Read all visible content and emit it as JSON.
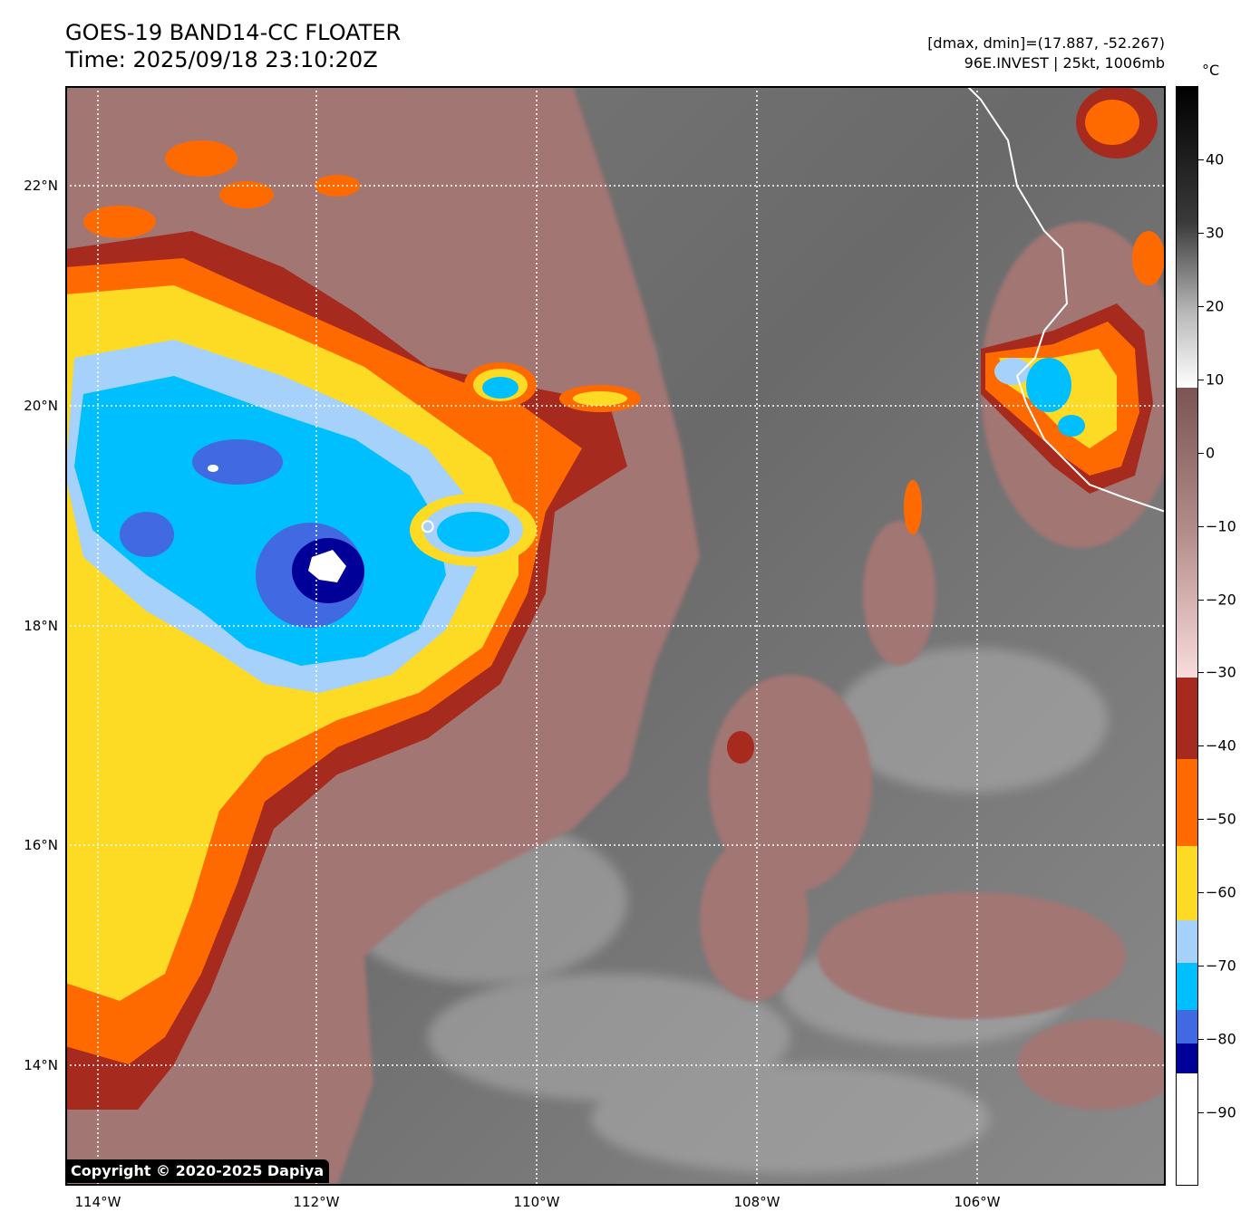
{
  "header": {
    "title_line1": "GOES-19 BAND14-CC FLOATER",
    "title_line2": "Time: 2025/09/18 23:10:20Z",
    "info_line1": "[dmax, dmin]=(17.887, -52.267)",
    "info_line2": "96E.INVEST | 25kt, 1006mb"
  },
  "map": {
    "lat_labels": [
      "22°N",
      "20°N",
      "18°N",
      "16°N",
      "14°N"
    ],
    "lon_labels": [
      "114°W",
      "112°W",
      "110°W",
      "108°W",
      "106°W"
    ],
    "gridlines": "dotted white",
    "copyright": "Copyright © 2020-2025 Dapiya",
    "storm_center": {
      "lon": -111.0,
      "lat": 18.9
    },
    "colors": {
      "white": "#ffffff",
      "navy": "#000099",
      "royal_blue": "#4169e1",
      "deep_sky_blue": "#00bfff",
      "light_blue": "#a6d1fa",
      "yellow": "#fdda24",
      "orange": "#ff6a00",
      "dark_red": "#a72a1e",
      "pink_brown": "#a27673",
      "gray": "#6b6b6b"
    }
  },
  "colorbar": {
    "unit": "°C",
    "tick_labels": [
      "40",
      "30",
      "20",
      "10",
      "0",
      "−10",
      "−20",
      "−30",
      "−40",
      "−50",
      "−60",
      "−70",
      "−80",
      "−90"
    ],
    "tick_values": [
      40,
      30,
      20,
      10,
      0,
      -10,
      -20,
      -30,
      -40,
      -50,
      -60,
      -70,
      -80,
      -90
    ],
    "range": [
      -100,
      50
    ]
  }
}
